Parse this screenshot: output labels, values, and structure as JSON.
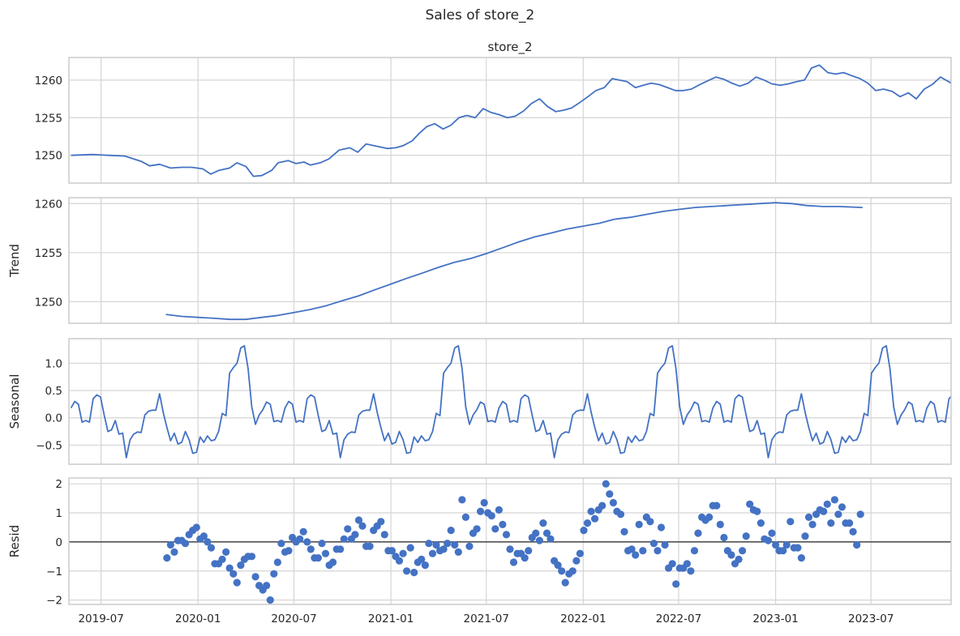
{
  "figure": {
    "suptitle": "Sales of store_2"
  },
  "chart_data": [
    {
      "type": "line",
      "panel": "observed",
      "title": "store_2",
      "ylabel": "",
      "xlim": [
        "2019-05-01",
        "2023-11-30"
      ],
      "x_ticks": [
        "2019-07",
        "2020-01",
        "2020-07",
        "2021-01",
        "2021-07",
        "2022-01",
        "2022-07",
        "2023-01",
        "2023-07"
      ],
      "ylim": [
        1246.3,
        1263
      ],
      "y_ticks": [
        1250,
        1255,
        1260
      ],
      "grid": true,
      "color": "#4472c4",
      "x": [
        "2019-05-05",
        "2019-06-15",
        "2019-07-15",
        "2019-08-15",
        "2019-09-15",
        "2019-10-01",
        "2019-10-20",
        "2019-11-10",
        "2019-12-01",
        "2019-12-20",
        "2020-01-10",
        "2020-01-25",
        "2020-02-10",
        "2020-03-01",
        "2020-03-15",
        "2020-04-01",
        "2020-04-15",
        "2020-05-01",
        "2020-05-20",
        "2020-06-01",
        "2020-06-20",
        "2020-07-05",
        "2020-07-20",
        "2020-08-01",
        "2020-08-20",
        "2020-09-05",
        "2020-09-25",
        "2020-10-15",
        "2020-10-30",
        "2020-11-15",
        "2020-12-05",
        "2020-12-25",
        "2021-01-10",
        "2021-01-25",
        "2021-02-10",
        "2021-02-25",
        "2021-03-10",
        "2021-03-25",
        "2021-04-10",
        "2021-04-25",
        "2021-05-10",
        "2021-05-25",
        "2021-06-10",
        "2021-06-25",
        "2021-07-10",
        "2021-07-25",
        "2021-08-10",
        "2021-08-25",
        "2021-09-10",
        "2021-09-25",
        "2021-10-10",
        "2021-10-25",
        "2021-11-10",
        "2021-11-25",
        "2021-12-10",
        "2021-12-25",
        "2022-01-10",
        "2022-01-25",
        "2022-02-10",
        "2022-02-25",
        "2022-03-10",
        "2022-03-25",
        "2022-04-10",
        "2022-04-25",
        "2022-05-10",
        "2022-05-25",
        "2022-06-10",
        "2022-06-25",
        "2022-07-10",
        "2022-07-25",
        "2022-08-10",
        "2022-08-25",
        "2022-09-10",
        "2022-09-25",
        "2022-10-10",
        "2022-10-25",
        "2022-11-10",
        "2022-11-25",
        "2022-12-10",
        "2022-12-25",
        "2023-01-10",
        "2023-01-25",
        "2023-02-10",
        "2023-02-25",
        "2023-03-10",
        "2023-03-25",
        "2023-04-10",
        "2023-04-25",
        "2023-05-10",
        "2023-05-25",
        "2023-06-10",
        "2023-06-25",
        "2023-07-10",
        "2023-07-25",
        "2023-08-10",
        "2023-08-25",
        "2023-09-10",
        "2023-09-25",
        "2023-10-10",
        "2023-10-25",
        "2023-11-10",
        "2023-11-30"
      ],
      "values": [
        1250.0,
        1250.1,
        1250.0,
        1249.9,
        1249.2,
        1248.6,
        1248.8,
        1248.3,
        1248.4,
        1248.4,
        1248.2,
        1247.5,
        1248.0,
        1248.3,
        1249.0,
        1248.5,
        1247.2,
        1247.3,
        1248.0,
        1249.0,
        1249.3,
        1248.9,
        1249.1,
        1248.7,
        1249.0,
        1249.5,
        1250.7,
        1251.0,
        1250.4,
        1251.5,
        1251.2,
        1250.9,
        1251.0,
        1251.3,
        1251.9,
        1253.0,
        1253.8,
        1254.2,
        1253.5,
        1254.0,
        1255.0,
        1255.3,
        1255.0,
        1256.2,
        1255.7,
        1255.4,
        1255.0,
        1255.2,
        1255.9,
        1256.9,
        1257.5,
        1256.5,
        1255.8,
        1256.0,
        1256.3,
        1257.0,
        1257.8,
        1258.6,
        1259.0,
        1260.2,
        1260.0,
        1259.8,
        1259.0,
        1259.3,
        1259.6,
        1259.4,
        1259.0,
        1258.6,
        1258.6,
        1258.8,
        1259.4,
        1259.9,
        1260.4,
        1260.1,
        1259.6,
        1259.2,
        1259.6,
        1260.4,
        1260.0,
        1259.5,
        1259.3,
        1259.5,
        1259.8,
        1260.0,
        1261.6,
        1262.0,
        1261.0,
        1260.8,
        1261.0,
        1260.6,
        1260.2,
        1259.6,
        1258.6,
        1258.8,
        1258.5,
        1257.8,
        1258.3,
        1257.5,
        1258.8,
        1259.4,
        1260.4,
        1259.6
      ]
    },
    {
      "type": "line",
      "panel": "trend",
      "ylabel": "Trend",
      "xlim": [
        "2019-05-01",
        "2023-11-30"
      ],
      "ylim": [
        1247.8,
        1260.6
      ],
      "y_ticks": [
        1250,
        1255,
        1260
      ],
      "grid": true,
      "color": "#4472c4",
      "x": [
        "2019-11-01",
        "2019-12-01",
        "2020-01-01",
        "2020-02-01",
        "2020-03-01",
        "2020-04-01",
        "2020-05-01",
        "2020-06-01",
        "2020-07-01",
        "2020-08-01",
        "2020-09-01",
        "2020-10-01",
        "2020-11-01",
        "2020-12-01",
        "2021-01-01",
        "2021-02-01",
        "2021-03-01",
        "2021-04-01",
        "2021-05-01",
        "2021-06-01",
        "2021-07-01",
        "2021-08-01",
        "2021-09-01",
        "2021-10-01",
        "2021-11-01",
        "2021-12-01",
        "2022-01-01",
        "2022-02-01",
        "2022-03-01",
        "2022-04-01",
        "2022-05-01",
        "2022-06-01",
        "2022-07-01",
        "2022-08-01",
        "2022-09-01",
        "2022-10-01",
        "2022-11-01",
        "2022-12-01",
        "2023-01-01",
        "2023-02-01",
        "2023-03-01",
        "2023-04-01",
        "2023-05-01",
        "2023-06-15"
      ],
      "values": [
        1248.7,
        1248.5,
        1248.4,
        1248.3,
        1248.2,
        1248.2,
        1248.4,
        1248.6,
        1248.9,
        1249.2,
        1249.6,
        1250.1,
        1250.6,
        1251.2,
        1251.8,
        1252.4,
        1252.9,
        1253.5,
        1254.0,
        1254.4,
        1254.9,
        1255.5,
        1256.1,
        1256.6,
        1257.0,
        1257.4,
        1257.7,
        1258.0,
        1258.4,
        1258.6,
        1258.9,
        1259.2,
        1259.4,
        1259.6,
        1259.7,
        1259.8,
        1259.9,
        1260.0,
        1260.1,
        1260.0,
        1259.8,
        1259.7,
        1259.7,
        1259.6
      ]
    },
    {
      "type": "line",
      "panel": "seasonal",
      "ylabel": "Seasonal",
      "xlim": [
        "2019-05-01",
        "2023-11-30"
      ],
      "ylim": [
        -0.85,
        1.45
      ],
      "y_ticks": [
        -0.5,
        0.0,
        0.5,
        1.0
      ],
      "y_tick_labels": [
        "−0.5",
        "0.0",
        "0.5",
        "1.0"
      ],
      "grid": true,
      "color": "#4472c4",
      "start": "2019-05-05",
      "step_days": 7,
      "period_pattern": [
        0.18,
        0.3,
        0.25,
        -0.08,
        -0.05,
        -0.08,
        0.35,
        0.42,
        0.38,
        0.05,
        -0.25,
        -0.22,
        -0.05,
        -0.3,
        -0.28,
        -0.73,
        -0.4,
        -0.3,
        -0.26,
        -0.27,
        0.05,
        0.12,
        0.14,
        0.14,
        0.44,
        0.1,
        -0.18,
        -0.42,
        -0.28,
        -0.48,
        -0.45,
        -0.25,
        -0.4,
        -0.65,
        -0.63,
        -0.35,
        -0.45,
        -0.33,
        -0.42,
        -0.4,
        -0.25,
        0.08,
        0.04,
        0.82,
        0.92,
        1.0,
        1.28,
        1.32,
        0.9,
        0.2,
        -0.12,
        0.05,
        0.15,
        0.29,
        0.25,
        -0.07,
        -0.05,
        -0.08
      ]
    },
    {
      "type": "scatter",
      "panel": "resid",
      "ylabel": "Resid",
      "xlim": [
        "2019-05-01",
        "2023-11-30"
      ],
      "x_ticks": [
        "2019-07",
        "2020-01",
        "2020-07",
        "2021-01",
        "2021-07",
        "2022-01",
        "2022-07",
        "2023-01",
        "2023-07"
      ],
      "ylim": [
        -2.15,
        2.2
      ],
      "y_ticks": [
        -2,
        -1,
        0,
        1,
        2
      ],
      "y_tick_labels": [
        "−2",
        "−1",
        "0",
        "1",
        "2"
      ],
      "zero_line": true,
      "grid": true,
      "color": "#4472c4",
      "start": "2019-11-03",
      "step_days": 7,
      "values": [
        -0.55,
        -0.1,
        -0.35,
        0.05,
        0.05,
        -0.05,
        0.25,
        0.4,
        0.5,
        0.1,
        0.2,
        0.0,
        -0.2,
        -0.75,
        -0.75,
        -0.6,
        -0.35,
        -0.9,
        -1.1,
        -1.4,
        -0.8,
        -0.6,
        -0.5,
        -0.5,
        -1.2,
        -1.5,
        -1.65,
        -1.5,
        -2.0,
        -1.1,
        -0.7,
        -0.05,
        -0.35,
        -0.3,
        0.15,
        0.0,
        0.1,
        0.35,
        0.0,
        -0.25,
        -0.55,
        -0.55,
        -0.05,
        -0.4,
        -0.8,
        -0.7,
        -0.25,
        -0.25,
        0.1,
        0.45,
        0.1,
        0.25,
        0.75,
        0.55,
        -0.15,
        -0.15,
        0.4,
        0.55,
        0.7,
        0.25,
        -0.3,
        -0.3,
        -0.5,
        -0.65,
        -0.4,
        -1.0,
        -0.2,
        -1.05,
        -0.7,
        -0.6,
        -0.8,
        -0.05,
        -0.4,
        -0.1,
        -0.3,
        -0.25,
        -0.05,
        0.4,
        -0.1,
        -0.35,
        1.45,
        0.85,
        -0.15,
        0.3,
        0.45,
        1.05,
        1.35,
        1.0,
        0.9,
        0.45,
        1.1,
        0.6,
        0.25,
        -0.25,
        -0.7,
        -0.4,
        -0.4,
        -0.55,
        -0.3,
        0.15,
        0.3,
        0.05,
        0.65,
        0.3,
        0.1,
        -0.65,
        -0.8,
        -1.0,
        -1.4,
        -1.1,
        -1.0,
        -0.65,
        -0.4,
        0.4,
        0.65,
        1.05,
        0.8,
        1.1,
        1.25,
        2.0,
        1.65,
        1.35,
        1.05,
        0.95,
        0.35,
        -0.3,
        -0.25,
        -0.45,
        0.6,
        -0.3,
        0.85,
        0.7,
        -0.05,
        -0.3,
        0.5,
        -0.1,
        -0.9,
        -0.75,
        -1.45,
        -0.9,
        -0.9,
        -0.75,
        -1.0,
        -0.3,
        0.3,
        0.85,
        0.75,
        0.85,
        1.25,
        1.25,
        0.6,
        0.15,
        -0.3,
        -0.45,
        -0.75,
        -0.6,
        -0.3,
        0.2,
        1.3,
        1.1,
        1.05,
        0.65,
        0.1,
        0.05,
        0.3,
        -0.1,
        -0.3,
        -0.3,
        -0.1,
        0.7,
        -0.2,
        -0.2,
        -0.55,
        0.2,
        0.85,
        0.6,
        0.95,
        1.1,
        1.05,
        1.3,
        0.65,
        1.45,
        0.95,
        1.2,
        0.65,
        0.65,
        0.35,
        -0.1,
        0.95
      ]
    }
  ]
}
